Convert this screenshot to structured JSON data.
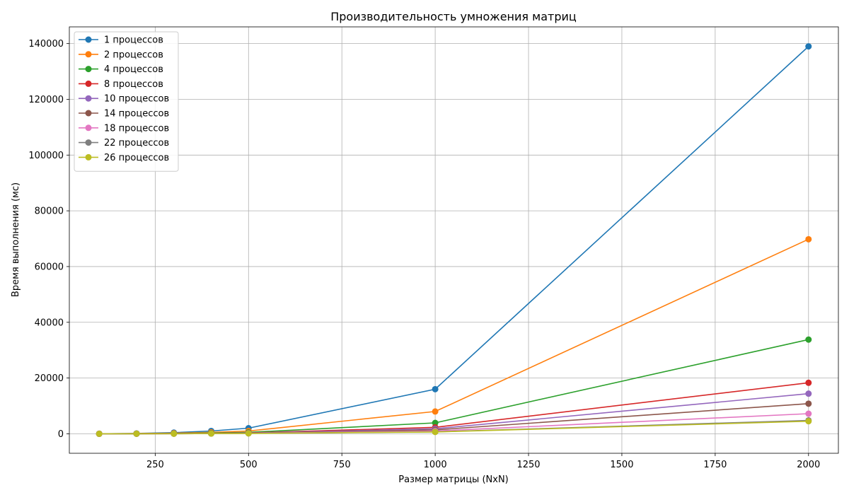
{
  "chart_data": {
    "type": "line",
    "title": "Производительность умножения матриц",
    "xlabel": "Размер матрицы (NxN)",
    "ylabel": "Время выполнения (мс)",
    "x": [
      100,
      200,
      300,
      400,
      500,
      1000,
      2000
    ],
    "xlim": [
      20,
      2080
    ],
    "ylim": [
      -7000,
      146000
    ],
    "xticks": [
      250,
      500,
      750,
      1000,
      1250,
      1500,
      1750,
      2000
    ],
    "yticks": [
      0,
      20000,
      40000,
      60000,
      80000,
      100000,
      120000,
      140000
    ],
    "grid": true,
    "legend_position": "top-left",
    "marker": "circle",
    "series": [
      {
        "name": "1 процессов",
        "color": "#1f77b4",
        "values": [
          15,
          120,
          420,
          1000,
          2000,
          16000,
          139000
        ]
      },
      {
        "name": "2 процессов",
        "color": "#ff7f0e",
        "values": [
          10,
          70,
          220,
          520,
          1000,
          8000,
          69800
        ]
      },
      {
        "name": "4 процессов",
        "color": "#2ca02c",
        "values": [
          8,
          40,
          120,
          270,
          500,
          3900,
          33800
        ]
      },
      {
        "name": "8 процессов",
        "color": "#d62728",
        "values": [
          6,
          25,
          75,
          160,
          300,
          2300,
          18300
        ]
      },
      {
        "name": "10 процессов",
        "color": "#9467bd",
        "values": [
          5,
          20,
          60,
          130,
          250,
          1800,
          14400
        ]
      },
      {
        "name": "14 процессов",
        "color": "#8c564b",
        "values": [
          5,
          18,
          50,
          110,
          200,
          1400,
          10800
        ]
      },
      {
        "name": "18 процессов",
        "color": "#e377c2",
        "values": [
          4,
          15,
          40,
          90,
          170,
          1000,
          7200
        ]
      },
      {
        "name": "22 процессов",
        "color": "#7f7f7f",
        "values": [
          4,
          12,
          35,
          80,
          150,
          700,
          4800
        ]
      },
      {
        "name": "26 процессов",
        "color": "#bcbd22",
        "values": [
          4,
          12,
          35,
          75,
          140,
          650,
          4500
        ]
      }
    ]
  }
}
